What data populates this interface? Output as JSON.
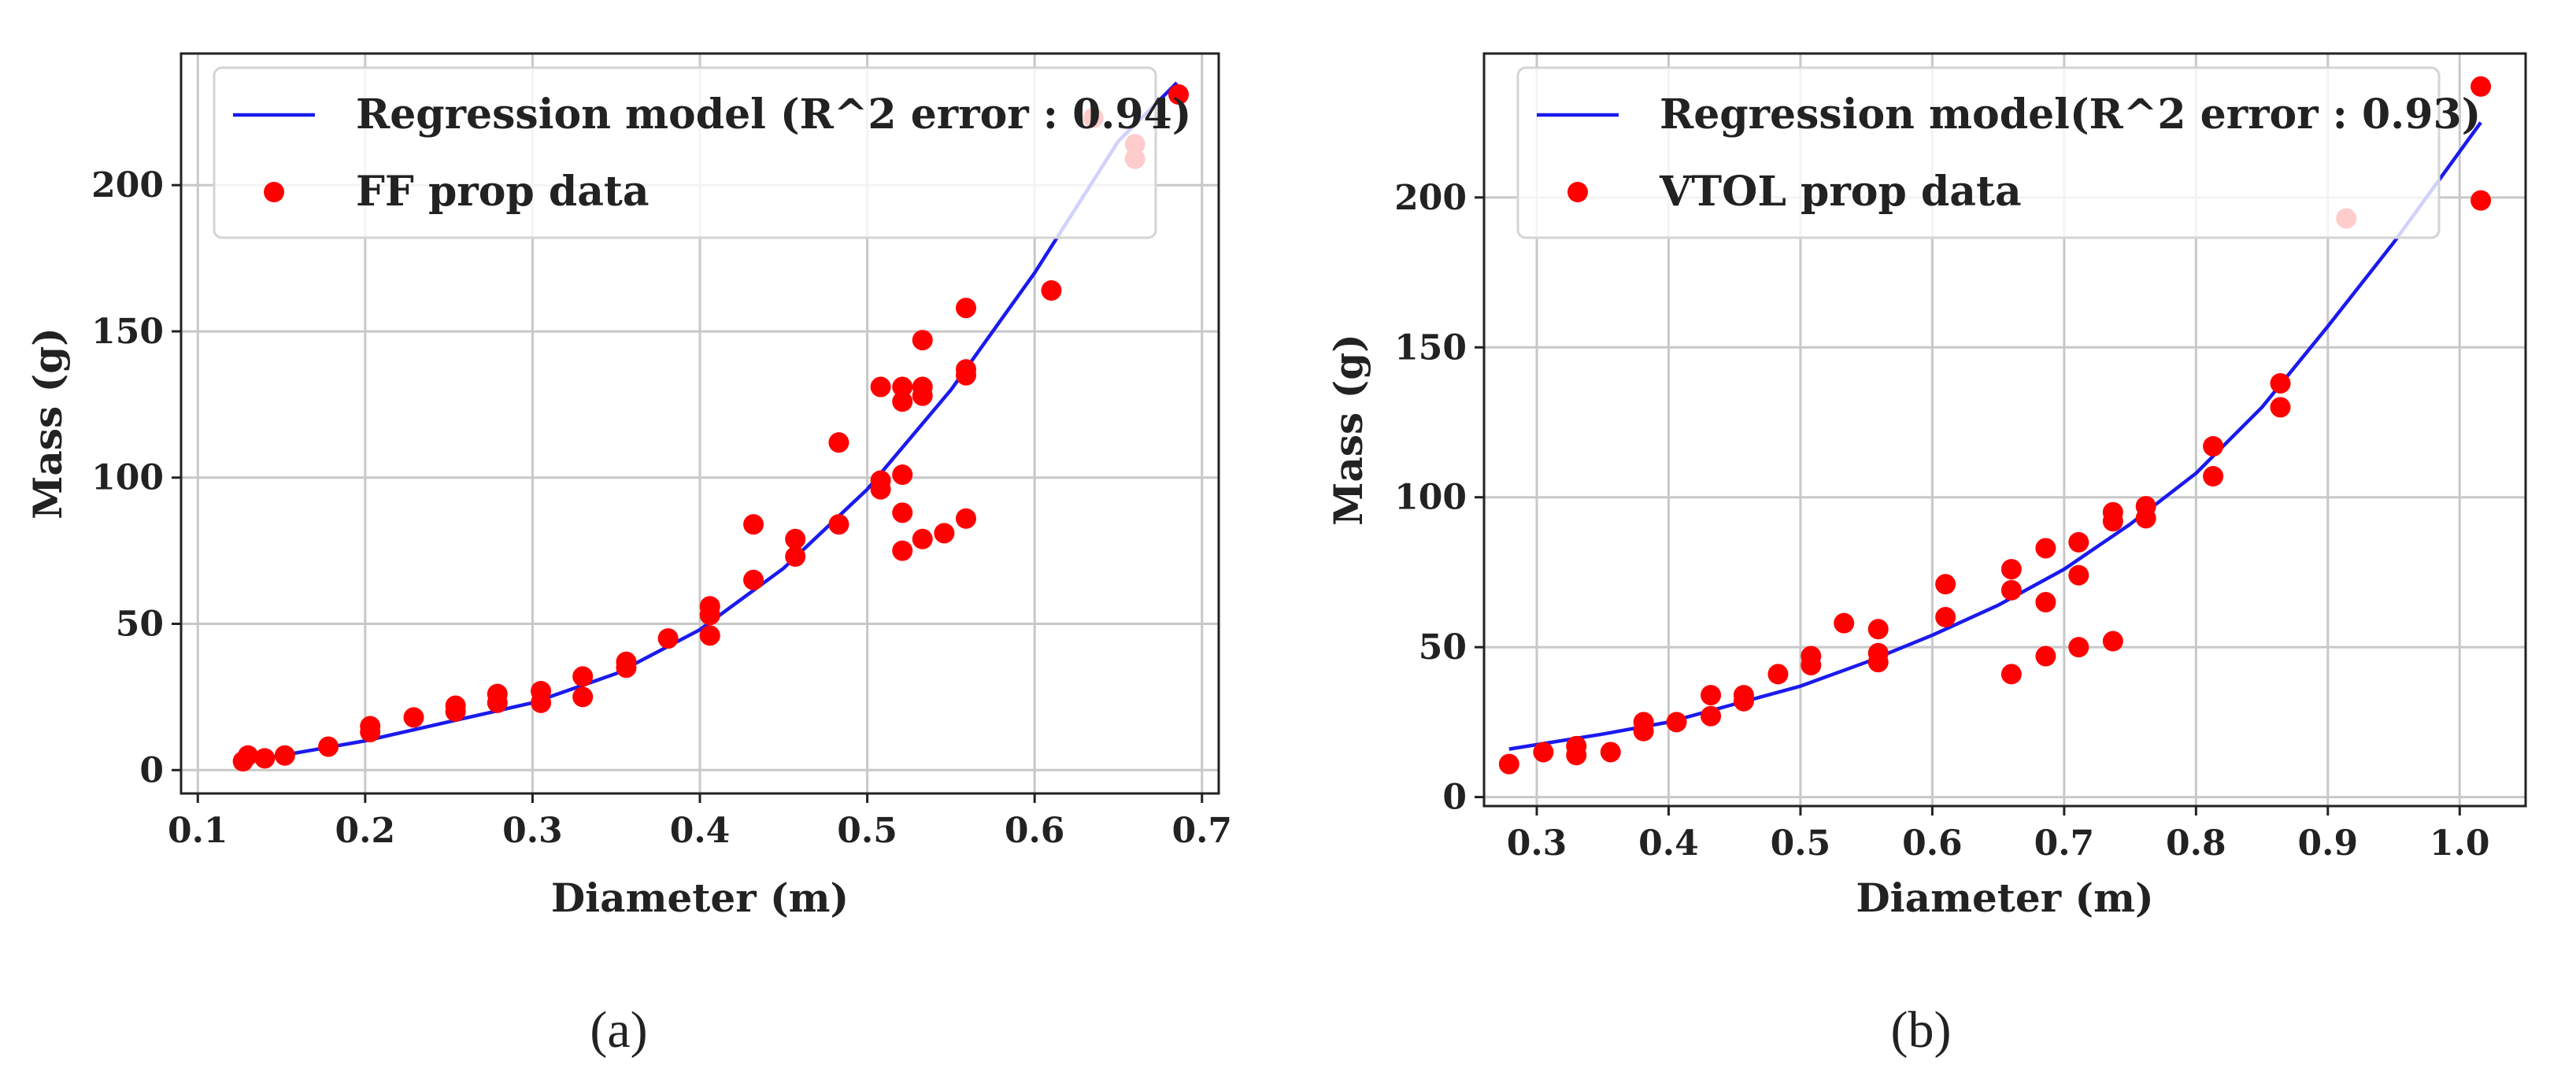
{
  "chart_data": [
    {
      "type": "scatter",
      "panel_label": "(a)",
      "xlabel": "Diameter (m)",
      "ylabel": "Mass (g)",
      "xlim": [
        0.09,
        0.71
      ],
      "ylim": [
        -8,
        245
      ],
      "xticks": [
        0.1,
        0.2,
        0.3,
        0.4,
        0.5,
        0.6,
        0.7
      ],
      "xtick_labels": [
        "0.1",
        "0.2",
        "0.3",
        "0.4",
        "0.5",
        "0.6",
        "0.7"
      ],
      "yticks": [
        0,
        50,
        100,
        150,
        200
      ],
      "ytick_labels": [
        "0",
        "50",
        "100",
        "150",
        "200"
      ],
      "grid": true,
      "legend_position": "top",
      "series": [
        {
          "name": "Regression model (R^2 error : 0.94)",
          "kind": "line",
          "color": "#1a1aee",
          "x": [
            0.127,
            0.15,
            0.2,
            0.25,
            0.3,
            0.35,
            0.4,
            0.45,
            0.5,
            0.55,
            0.6,
            0.65,
            0.685
          ],
          "y": [
            3,
            5,
            10,
            16.5,
            23,
            33,
            48,
            69,
            96,
            130,
            170,
            215,
            235
          ]
        },
        {
          "name": "FF prop data",
          "kind": "scatter",
          "color": "#ff0000",
          "x": [
            0.127,
            0.13,
            0.14,
            0.152,
            0.178,
            0.203,
            0.203,
            0.229,
            0.254,
            0.254,
            0.279,
            0.279,
            0.305,
            0.305,
            0.33,
            0.33,
            0.356,
            0.356,
            0.381,
            0.406,
            0.406,
            0.406,
            0.432,
            0.432,
            0.457,
            0.457,
            0.483,
            0.483,
            0.508,
            0.508,
            0.508,
            0.521,
            0.521,
            0.521,
            0.521,
            0.521,
            0.533,
            0.533,
            0.533,
            0.533,
            0.546,
            0.559,
            0.559,
            0.559,
            0.559,
            0.61,
            0.635,
            0.66,
            0.66,
            0.686
          ],
          "y": [
            3,
            5,
            4,
            5,
            8,
            13,
            15,
            18,
            20,
            22,
            23,
            26,
            23,
            27,
            25,
            32,
            35,
            37,
            45,
            46,
            53,
            56,
            65,
            84,
            73,
            79,
            84,
            112,
            96,
            99,
            131,
            75,
            88,
            101,
            126,
            131,
            79,
            128,
            131,
            147,
            81,
            86,
            135,
            137,
            158,
            164,
            223,
            209,
            214,
            231
          ]
        }
      ]
    },
    {
      "type": "scatter",
      "panel_label": "(b)",
      "xlabel": "Diameter (m)",
      "ylabel": "Mass (g)",
      "xlim": [
        0.26,
        1.05
      ],
      "ylim": [
        -3,
        248
      ],
      "xticks": [
        0.3,
        0.4,
        0.5,
        0.6,
        0.7,
        0.8,
        0.9,
        1.0
      ],
      "xtick_labels": [
        "0.3",
        "0.4",
        "0.5",
        "0.6",
        "0.7",
        "0.8",
        "0.9",
        "1.0"
      ],
      "yticks": [
        0,
        50,
        100,
        150,
        200
      ],
      "ytick_labels": [
        "0",
        "50",
        "100",
        "150",
        "200"
      ],
      "grid": true,
      "legend_position": "top",
      "series": [
        {
          "name": "Regression model(R^2 error : 0.93)",
          "kind": "line",
          "color": "#1a1aee",
          "x": [
            0.279,
            0.35,
            0.4,
            0.45,
            0.5,
            0.55,
            0.6,
            0.65,
            0.7,
            0.75,
            0.8,
            0.85,
            0.9,
            0.95,
            1.016
          ],
          "y": [
            16,
            21,
            25,
            31,
            37,
            45,
            54,
            64,
            76,
            91,
            108,
            130,
            157,
            185,
            225
          ]
        },
        {
          "name": "VTOL prop data",
          "kind": "scatter",
          "color": "#ff0000",
          "x": [
            0.279,
            0.305,
            0.33,
            0.33,
            0.356,
            0.381,
            0.381,
            0.406,
            0.432,
            0.432,
            0.457,
            0.457,
            0.483,
            0.508,
            0.508,
            0.533,
            0.559,
            0.559,
            0.559,
            0.61,
            0.61,
            0.66,
            0.66,
            0.66,
            0.686,
            0.686,
            0.686,
            0.711,
            0.711,
            0.711,
            0.737,
            0.737,
            0.737,
            0.762,
            0.762,
            0.813,
            0.813,
            0.864,
            0.864,
            0.914,
            1.016,
            1.016
          ],
          "y": [
            11,
            15,
            14,
            17,
            15,
            22,
            25,
            25,
            27,
            34,
            32,
            34,
            41,
            44,
            47,
            58,
            45,
            48,
            56,
            60,
            71,
            41,
            69,
            76,
            47,
            65,
            83,
            50,
            74,
            85,
            52,
            92,
            95,
            93,
            97,
            107,
            117,
            130,
            138,
            193,
            199,
            237
          ]
        }
      ]
    }
  ]
}
